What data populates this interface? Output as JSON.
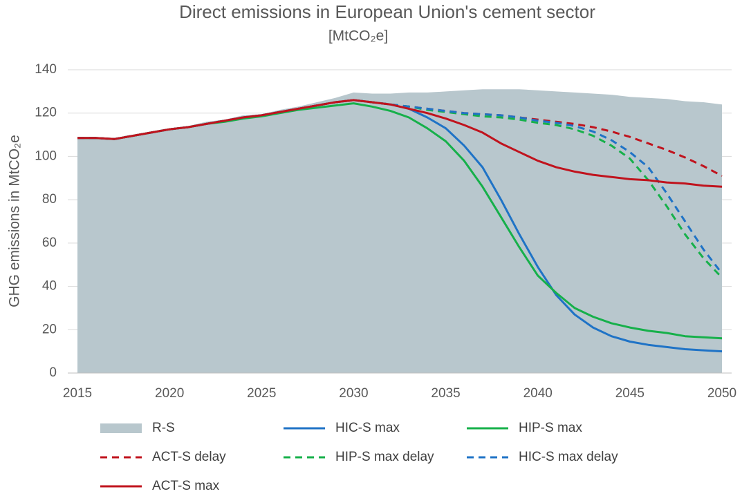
{
  "chart_data": {
    "type": "line",
    "title": "Direct emissions in European Union's cement sector",
    "subtitle": "[MtCO₂e]",
    "y_label": "GHG emissions in MtCO₂e",
    "x": [
      2015,
      2016,
      2017,
      2018,
      2019,
      2020,
      2021,
      2022,
      2023,
      2024,
      2025,
      2026,
      2027,
      2028,
      2029,
      2030,
      2031,
      2032,
      2033,
      2034,
      2035,
      2036,
      2037,
      2038,
      2039,
      2040,
      2041,
      2042,
      2043,
      2044,
      2045,
      2046,
      2047,
      2048,
      2049,
      2050
    ],
    "xlim": [
      2015,
      2050
    ],
    "xticks": [
      2015,
      2020,
      2025,
      2030,
      2035,
      2040,
      2045,
      2050
    ],
    "ylim": [
      0,
      140
    ],
    "yticks": [
      0,
      20,
      40,
      60,
      80,
      100,
      120,
      140
    ],
    "grid": true,
    "series": [
      {
        "name": "R-S",
        "style": "area",
        "color": "#b8c7cd",
        "values": [
          108.5,
          108.5,
          108,
          109.5,
          111,
          113,
          114,
          116,
          117,
          119,
          119.5,
          121.5,
          123,
          125,
          127,
          129.5,
          129,
          129,
          129.5,
          129.5,
          130,
          130.5,
          131,
          131,
          131,
          130.5,
          130,
          129.5,
          129,
          128.5,
          127.5,
          127,
          126.5,
          125.5,
          125,
          124
        ]
      },
      {
        "name": "HIC-S max",
        "style": "solid",
        "color": "#1f73c6",
        "values": [
          108.5,
          108.5,
          108,
          109.5,
          111,
          112.5,
          113.5,
          115,
          116.5,
          118,
          119,
          120.5,
          122,
          123.5,
          125,
          126,
          125,
          124,
          122,
          118,
          113,
          105,
          95,
          80,
          64,
          49,
          36,
          27,
          21,
          17,
          14.5,
          13,
          12,
          11,
          10.5,
          10
        ]
      },
      {
        "name": "HIP-S max",
        "style": "solid",
        "color": "#16b04a",
        "values": [
          108.5,
          108.5,
          108,
          109.5,
          111,
          112.5,
          113.5,
          115,
          116,
          117.5,
          118.5,
          120,
          121.5,
          122.5,
          123.5,
          124.5,
          123,
          121,
          118,
          113,
          107,
          98,
          86,
          72,
          58,
          45,
          37,
          30,
          26,
          23,
          21,
          19.5,
          18.5,
          17,
          16.5,
          16
        ]
      },
      {
        "name": "ACT-S delay",
        "style": "dashed",
        "color": "#c0131d",
        "values": [
          108.5,
          108.5,
          108,
          109.5,
          111,
          112.5,
          113.5,
          115,
          116.5,
          118,
          119,
          120.5,
          122,
          123.5,
          125,
          126,
          125,
          124,
          123,
          122,
          121,
          120,
          119.5,
          119,
          118,
          117,
          116,
          115,
          113.5,
          111.5,
          109,
          106,
          103,
          99.5,
          95.5,
          91
        ]
      },
      {
        "name": "HIP-S max delay",
        "style": "dashed",
        "color": "#16b04a",
        "values": [
          108.5,
          108.5,
          108,
          109.5,
          111,
          112.5,
          113.5,
          115,
          116.5,
          118,
          119,
          120.5,
          122,
          123.5,
          125,
          126,
          125,
          124,
          123,
          121.5,
          120.5,
          119.5,
          118.5,
          118,
          117,
          115.5,
          114.5,
          112.5,
          109.5,
          105,
          99,
          89,
          77,
          64,
          53,
          44
        ]
      },
      {
        "name": "HIC-S max delay",
        "style": "dashed",
        "color": "#1f73c6",
        "values": [
          108.5,
          108.5,
          108,
          109.5,
          111,
          112.5,
          113.5,
          115,
          116.5,
          118,
          119,
          120.5,
          122,
          123.5,
          125,
          126,
          125,
          124,
          123,
          122,
          121,
          120,
          119.5,
          119,
          118,
          116.5,
          115.5,
          114,
          111.5,
          107.5,
          102,
          95,
          83,
          70,
          57,
          46
        ]
      },
      {
        "name": "ACT-S max",
        "style": "solid",
        "color": "#c0131d",
        "values": [
          108.5,
          108.5,
          108,
          109.5,
          111,
          112.5,
          113.5,
          115,
          116.5,
          118,
          119,
          120.5,
          122,
          123.5,
          125,
          126,
          125,
          124,
          122,
          120,
          117.5,
          114.5,
          111,
          106,
          102,
          98,
          95,
          93,
          91.5,
          90.5,
          89.5,
          89,
          88,
          87.5,
          86.5,
          86
        ]
      }
    ]
  }
}
